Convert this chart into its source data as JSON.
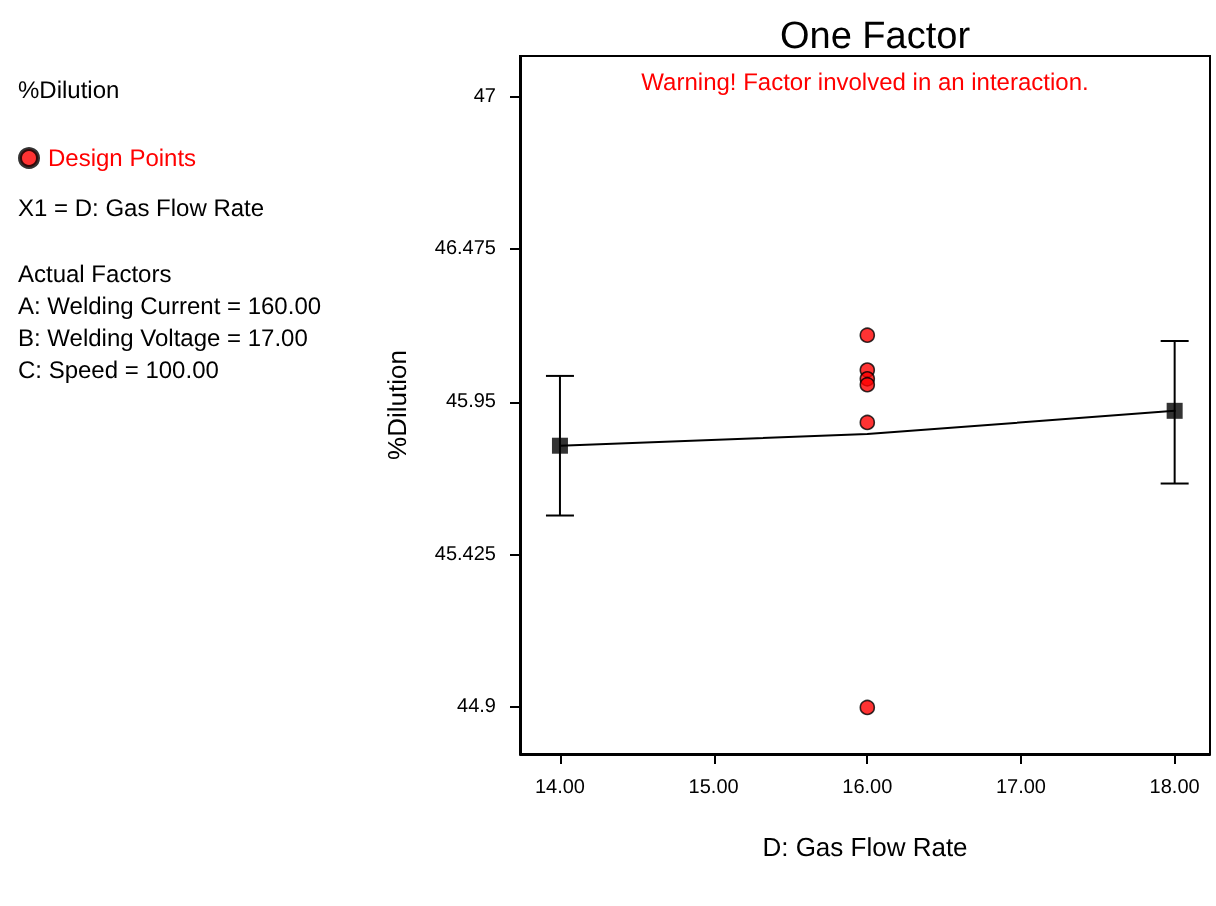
{
  "chart_data": {
    "type": "scatter",
    "title": "One Factor",
    "xlabel": "D: Gas Flow Rate",
    "ylabel": "%Dilution",
    "annotations": [
      "Warning! Factor involved in an interaction.",
      "%Dilution",
      "X1 = D: Gas Flow Rate",
      "Actual Factors",
      "A: Welding Current = 160.00",
      "B: Welding Voltage = 17.00",
      "C: Speed = 100.00"
    ],
    "xlim": [
      13.74,
      18.23
    ],
    "xticks": [
      {
        "value": 14,
        "label": "14.00"
      },
      {
        "value": 15,
        "label": "15.00"
      },
      {
        "value": 16,
        "label": "16.00"
      },
      {
        "value": 17,
        "label": "17.00"
      },
      {
        "value": 18,
        "label": "18.00"
      }
    ],
    "ylim": [
      44.74,
      47.14
    ],
    "yticks": [
      44.9,
      45.425,
      45.95,
      46.475,
      47
    ],
    "grid": false,
    "legend": "left",
    "series": [
      {
        "type": "line",
        "color": "#000000",
        "x": [
          14,
          16,
          18
        ],
        "values": [
          45.8,
          45.84,
          45.92
        ],
        "marker": "none",
        "line_style": "solid"
      },
      {
        "color": "#000000",
        "x": [
          14,
          18
        ],
        "values": [
          45.8,
          45.92
        ],
        "marker": "square",
        "errors": [
          [
            45.56,
            46.04
          ],
          [
            45.67,
            46.16
          ]
        ]
      },
      {
        "name": "Design Points",
        "color": "#ff0000",
        "x": [
          16,
          16,
          16,
          16,
          16,
          16
        ],
        "values": [
          46.18,
          46.06,
          46.03,
          46.01,
          45.88,
          44.9
        ],
        "marker": "circle"
      }
    ]
  }
}
